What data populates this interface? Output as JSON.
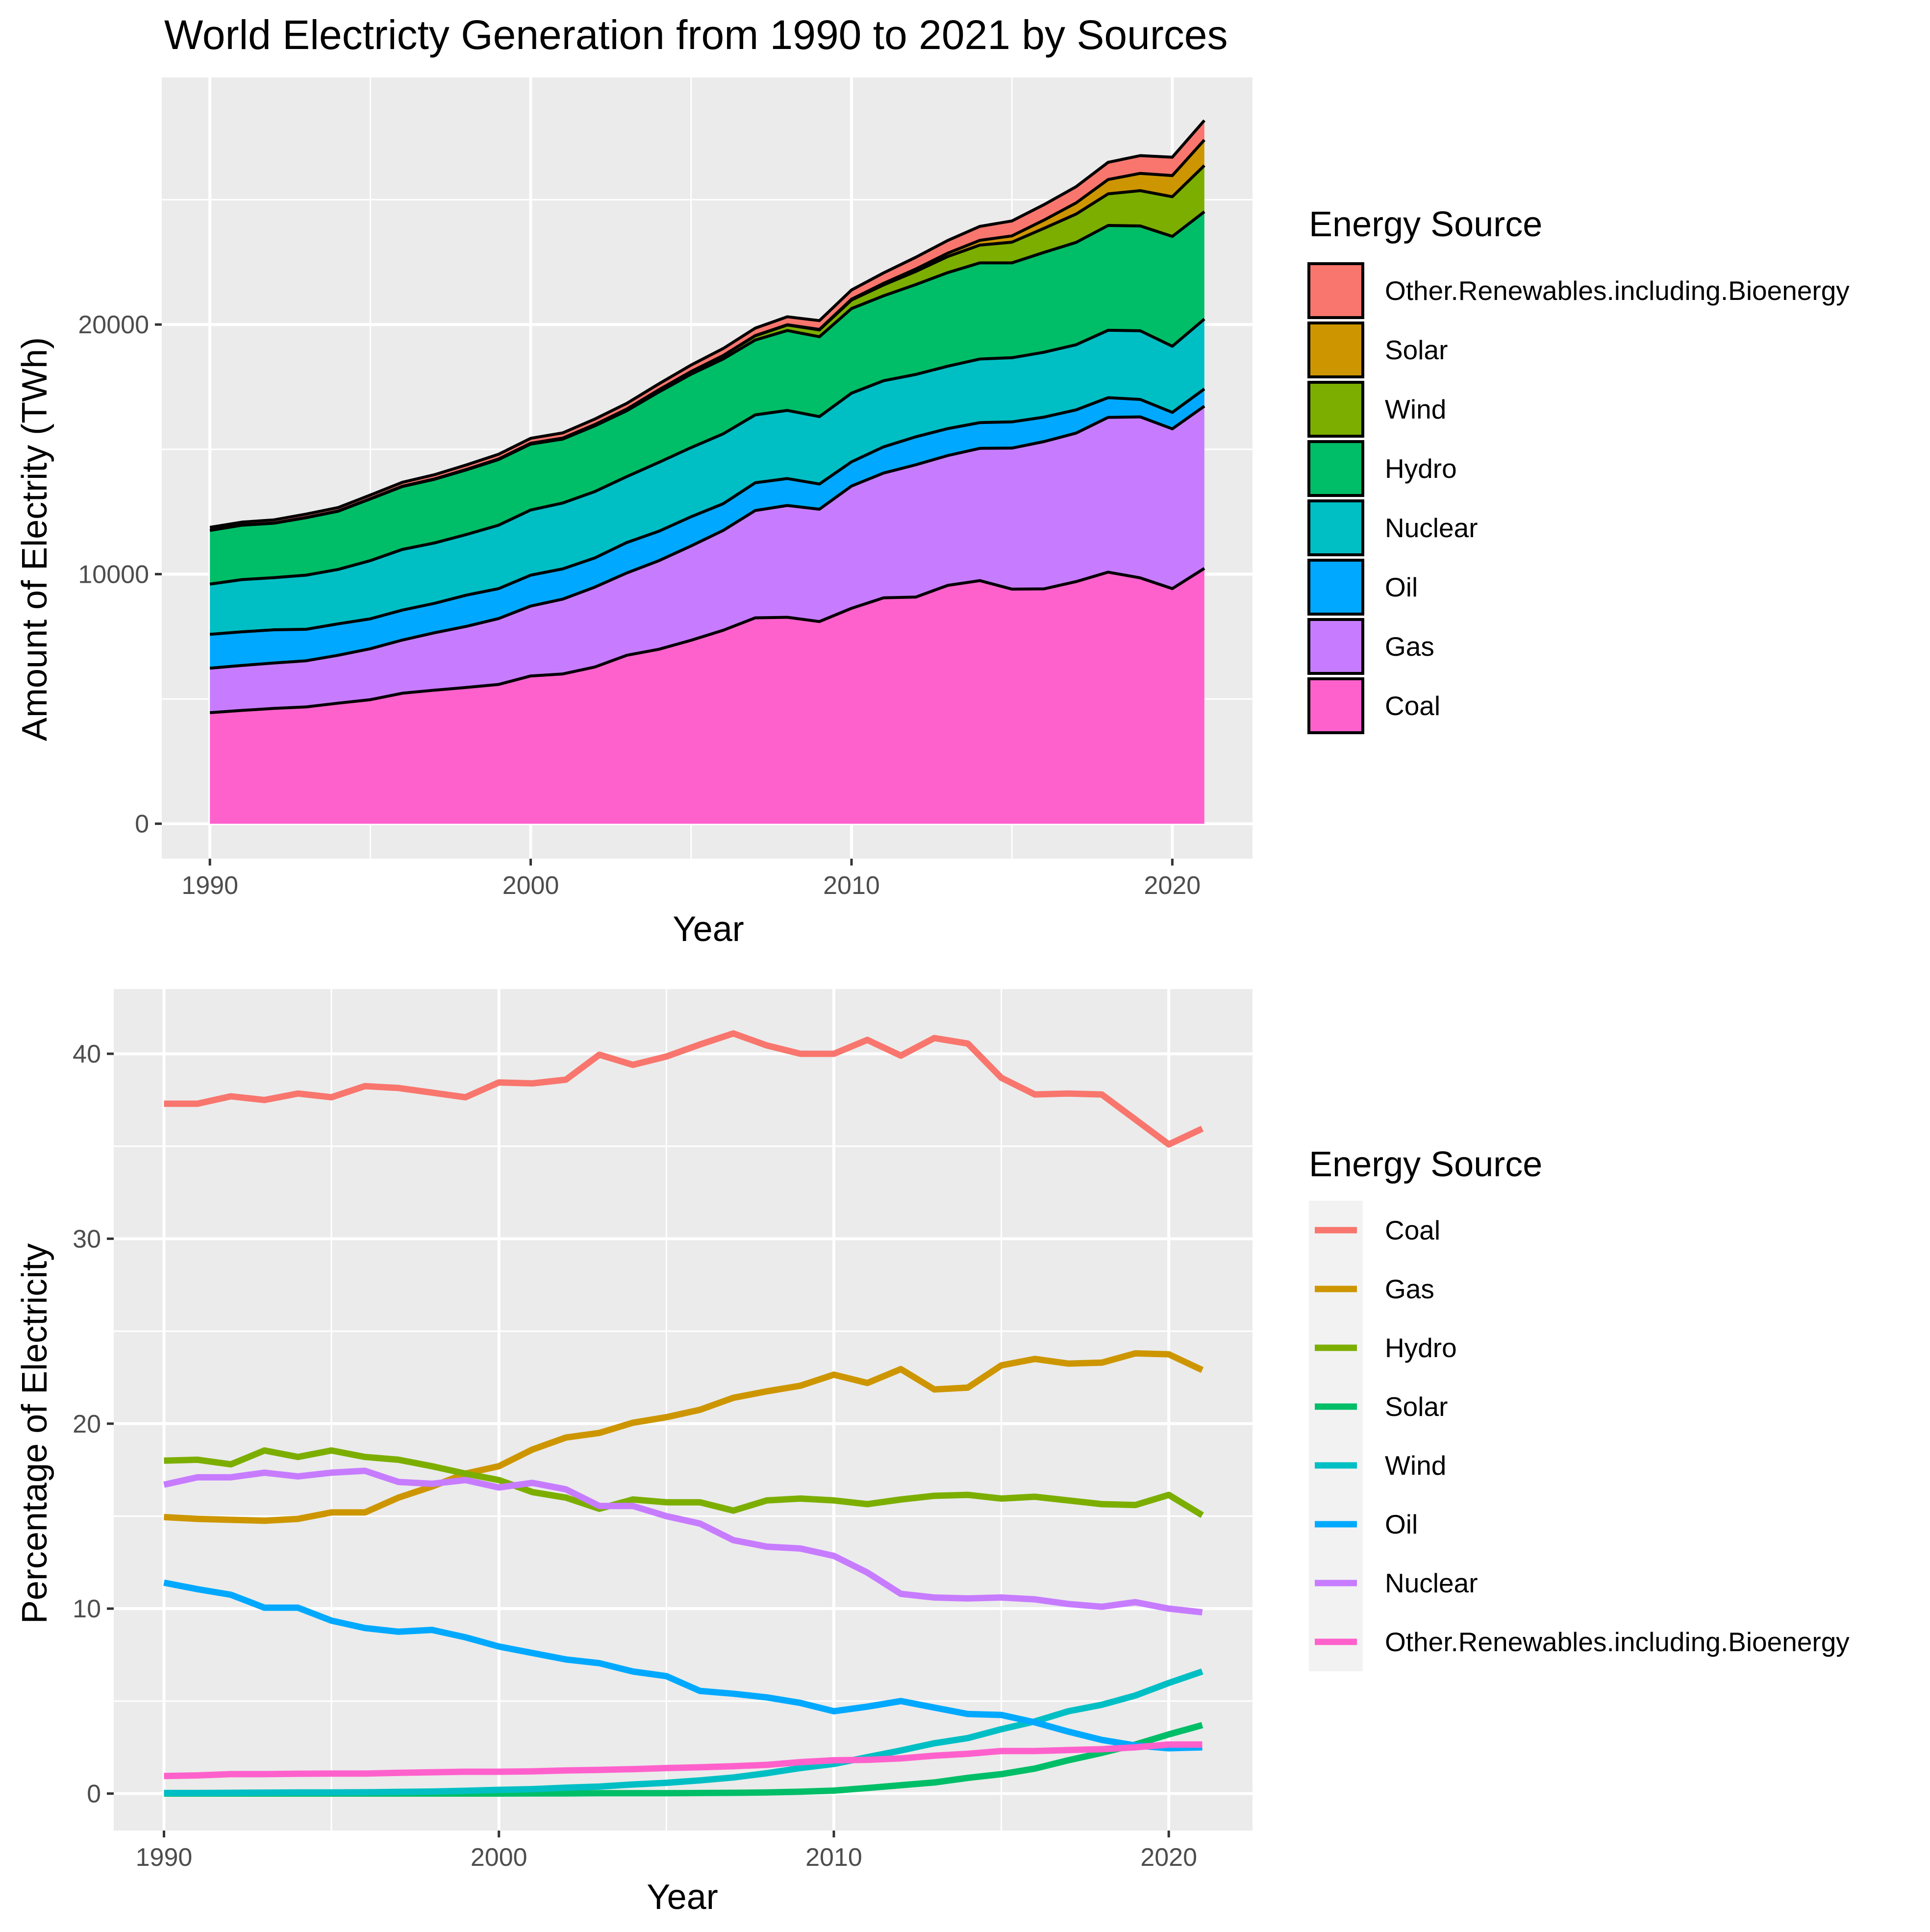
{
  "chart_data": [
    {
      "type": "area",
      "stacked": true,
      "title": "World Electricty Generation from 1990 to 2021 by Sources",
      "xlabel": "Year",
      "ylabel": "Amount of Electrity (TWh)",
      "xlim": [
        1988.5,
        2022.5
      ],
      "ylim": [
        -1400,
        29900
      ],
      "xticks": [
        1990,
        2000,
        2010,
        2020
      ],
      "yticks": [
        0,
        10000,
        20000
      ],
      "grid": true,
      "legend": {
        "title": "Energy Source",
        "position": "right"
      },
      "x": [
        1990,
        1991,
        1992,
        1993,
        1994,
        1995,
        1996,
        1997,
        1998,
        1999,
        2000,
        2001,
        2002,
        2003,
        2004,
        2005,
        2006,
        2007,
        2008,
        2009,
        2010,
        2011,
        2012,
        2013,
        2014,
        2015,
        2016,
        2017,
        2018,
        2019,
        2020,
        2021
      ],
      "series": [
        {
          "name": "Coal",
          "color": "#FF61CC",
          "values": [
            4450,
            4540,
            4620,
            4680,
            4830,
            4970,
            5230,
            5350,
            5460,
            5580,
            5920,
            6000,
            6280,
            6750,
            6990,
            7350,
            7750,
            8250,
            8270,
            8100,
            8630,
            9050,
            9080,
            9550,
            9740,
            9400,
            9410,
            9700,
            10080,
            9850,
            9420,
            10230
          ]
        },
        {
          "name": "Gas",
          "color": "#C77CFF",
          "values": [
            1780,
            1800,
            1820,
            1850,
            1920,
            2040,
            2130,
            2300,
            2450,
            2640,
            2800,
            3000,
            3200,
            3300,
            3550,
            3780,
            4000,
            4300,
            4480,
            4500,
            4900,
            5000,
            5300,
            5200,
            5300,
            5650,
            5900,
            5950,
            6200,
            6450,
            6400,
            6500
          ]
        },
        {
          "name": "Oil",
          "color": "#00A9FF",
          "values": [
            1360,
            1350,
            1330,
            1260,
            1260,
            1200,
            1200,
            1180,
            1250,
            1200,
            1240,
            1210,
            1170,
            1220,
            1180,
            1170,
            1070,
            1110,
            1080,
            1010,
            970,
            1050,
            1120,
            1080,
            1030,
            1050,
            980,
            930,
            790,
            700,
            660,
            690
          ]
        },
        {
          "name": "Nuclear",
          "color": "#00BFC4",
          "values": [
            2010,
            2090,
            2090,
            2170,
            2180,
            2330,
            2430,
            2420,
            2430,
            2540,
            2610,
            2640,
            2660,
            2640,
            2760,
            2770,
            2800,
            2720,
            2730,
            2700,
            2750,
            2650,
            2500,
            2500,
            2550,
            2570,
            2600,
            2610,
            2700,
            2750,
            2650,
            2800
          ]
        },
        {
          "name": "Hydro",
          "color": "#00BE67",
          "values": [
            2150,
            2180,
            2180,
            2300,
            2330,
            2470,
            2520,
            2550,
            2590,
            2630,
            2640,
            2560,
            2630,
            2640,
            2820,
            2940,
            3000,
            3000,
            3200,
            3200,
            3390,
            3400,
            3600,
            3750,
            3850,
            3800,
            4000,
            4100,
            4200,
            4200,
            4400,
            4300
          ]
        },
        {
          "name": "Wind",
          "color": "#7CAE00",
          "values": [
            4,
            4,
            5,
            6,
            7,
            8,
            9,
            12,
            16,
            22,
            31,
            38,
            52,
            63,
            85,
            104,
            133,
            170,
            220,
            276,
            342,
            437,
            524,
            645,
            712,
            831,
            964,
            1136,
            1267,
            1414,
            1590,
            1854
          ]
        },
        {
          "name": "Solar",
          "color": "#CD9600",
          "values": [
            0,
            0,
            0,
            0,
            0,
            0,
            0,
            1,
            1,
            1,
            1,
            2,
            2,
            3,
            3,
            4,
            6,
            7,
            12,
            20,
            32,
            63,
            99,
            135,
            190,
            250,
            329,
            447,
            572,
            694,
            846,
            1023
          ]
        },
        {
          "name": "Other.Renewables.including.Bioenergy",
          "color": "#F8766D",
          "values": [
            120,
            120,
            130,
            140,
            140,
            150,
            160,
            170,
            180,
            190,
            200,
            210,
            220,
            230,
            240,
            260,
            280,
            300,
            320,
            350,
            370,
            420,
            470,
            510,
            560,
            600,
            620,
            650,
            690,
            710,
            740,
            780
          ]
        }
      ]
    },
    {
      "type": "line",
      "xlabel": "Year",
      "ylabel": "Percentage of Electricity",
      "xlim": [
        1988.5,
        2022.5
      ],
      "ylim": [
        -2,
        43.5
      ],
      "xticks": [
        1990,
        2000,
        2010,
        2020
      ],
      "yticks": [
        0,
        10,
        20,
        30,
        40
      ],
      "grid": true,
      "legend": {
        "title": "Energy Source",
        "position": "right"
      },
      "x": [
        1990,
        1991,
        1992,
        1993,
        1994,
        1995,
        1996,
        1997,
        1998,
        1999,
        2000,
        2001,
        2002,
        2003,
        2004,
        2005,
        2006,
        2007,
        2008,
        2009,
        2010,
        2011,
        2012,
        2013,
        2014,
        2015,
        2016,
        2017,
        2018,
        2019,
        2020,
        2021
      ],
      "series": [
        {
          "name": "Coal",
          "color": "#F8766D",
          "values": [
            37.3,
            37.3,
            37.7,
            37.5,
            37.85,
            37.65,
            38.25,
            38.15,
            37.9,
            37.65,
            38.45,
            38.4,
            38.6,
            39.95,
            39.4,
            39.85,
            40.5,
            41.1,
            40.45,
            40.0,
            40.0,
            40.75,
            39.9,
            40.85,
            40.55,
            38.7,
            37.8,
            37.85,
            37.8,
            36.45,
            35.1,
            35.95
          ]
        },
        {
          "name": "Gas",
          "color": "#CD9600",
          "values": [
            14.95,
            14.85,
            14.8,
            14.75,
            14.85,
            15.2,
            15.2,
            16.0,
            16.6,
            17.3,
            17.7,
            18.6,
            19.25,
            19.5,
            20.05,
            20.35,
            20.75,
            21.4,
            21.75,
            22.05,
            22.65,
            22.2,
            22.95,
            21.85,
            21.95,
            23.15,
            23.5,
            23.25,
            23.3,
            23.8,
            23.75,
            22.9
          ]
        },
        {
          "name": "Hydro",
          "color": "#7CAE00",
          "values": [
            18.0,
            18.05,
            17.8,
            18.55,
            18.2,
            18.55,
            18.2,
            18.05,
            17.7,
            17.3,
            16.95,
            16.3,
            16.0,
            15.4,
            15.9,
            15.75,
            15.75,
            15.3,
            15.85,
            15.95,
            15.85,
            15.65,
            15.9,
            16.1,
            16.15,
            15.95,
            16.05,
            15.85,
            15.65,
            15.6,
            16.15,
            15.05
          ]
        },
        {
          "name": "Solar",
          "color": "#00BE67",
          "values": [
            0,
            0,
            0,
            0,
            0,
            0,
            0,
            0,
            0,
            0,
            0,
            0.01,
            0.01,
            0.02,
            0.02,
            0.02,
            0.03,
            0.04,
            0.06,
            0.1,
            0.16,
            0.3,
            0.45,
            0.6,
            0.85,
            1.05,
            1.35,
            1.8,
            2.2,
            2.65,
            3.2,
            3.7
          ]
        },
        {
          "name": "Wind",
          "color": "#00BFC4",
          "values": [
            0.03,
            0.03,
            0.04,
            0.05,
            0.06,
            0.06,
            0.07,
            0.09,
            0.11,
            0.15,
            0.2,
            0.24,
            0.32,
            0.38,
            0.49,
            0.58,
            0.71,
            0.87,
            1.1,
            1.38,
            1.6,
            1.97,
            2.33,
            2.72,
            3.0,
            3.48,
            3.9,
            4.45,
            4.8,
            5.3,
            5.98,
            6.6
          ]
        },
        {
          "name": "Oil",
          "color": "#00A9FF",
          "values": [
            11.4,
            11.05,
            10.75,
            10.05,
            10.05,
            9.35,
            8.95,
            8.75,
            8.85,
            8.45,
            7.95,
            7.6,
            7.25,
            7.05,
            6.6,
            6.35,
            5.55,
            5.4,
            5.2,
            4.9,
            4.45,
            4.7,
            5.0,
            4.65,
            4.3,
            4.25,
            3.85,
            3.35,
            2.9,
            2.6,
            2.45,
            2.5
          ]
        },
        {
          "name": "Nuclear",
          "color": "#C77CFF",
          "values": [
            16.7,
            17.1,
            17.1,
            17.35,
            17.15,
            17.35,
            17.45,
            16.85,
            16.75,
            16.95,
            16.55,
            16.8,
            16.45,
            15.55,
            15.55,
            15.0,
            14.6,
            13.7,
            13.35,
            13.25,
            12.85,
            11.95,
            10.8,
            10.6,
            10.55,
            10.6,
            10.5,
            10.25,
            10.1,
            10.35,
            10.0,
            9.8
          ]
        },
        {
          "name": "Other.Renewables.including.Bioenergy",
          "color": "#FF61CC",
          "values": [
            0.95,
            0.98,
            1.05,
            1.05,
            1.07,
            1.08,
            1.08,
            1.12,
            1.15,
            1.18,
            1.18,
            1.2,
            1.25,
            1.28,
            1.32,
            1.38,
            1.42,
            1.48,
            1.55,
            1.7,
            1.8,
            1.82,
            1.9,
            2.05,
            2.15,
            2.3,
            2.3,
            2.35,
            2.4,
            2.5,
            2.65,
            2.65
          ]
        }
      ]
    }
  ]
}
